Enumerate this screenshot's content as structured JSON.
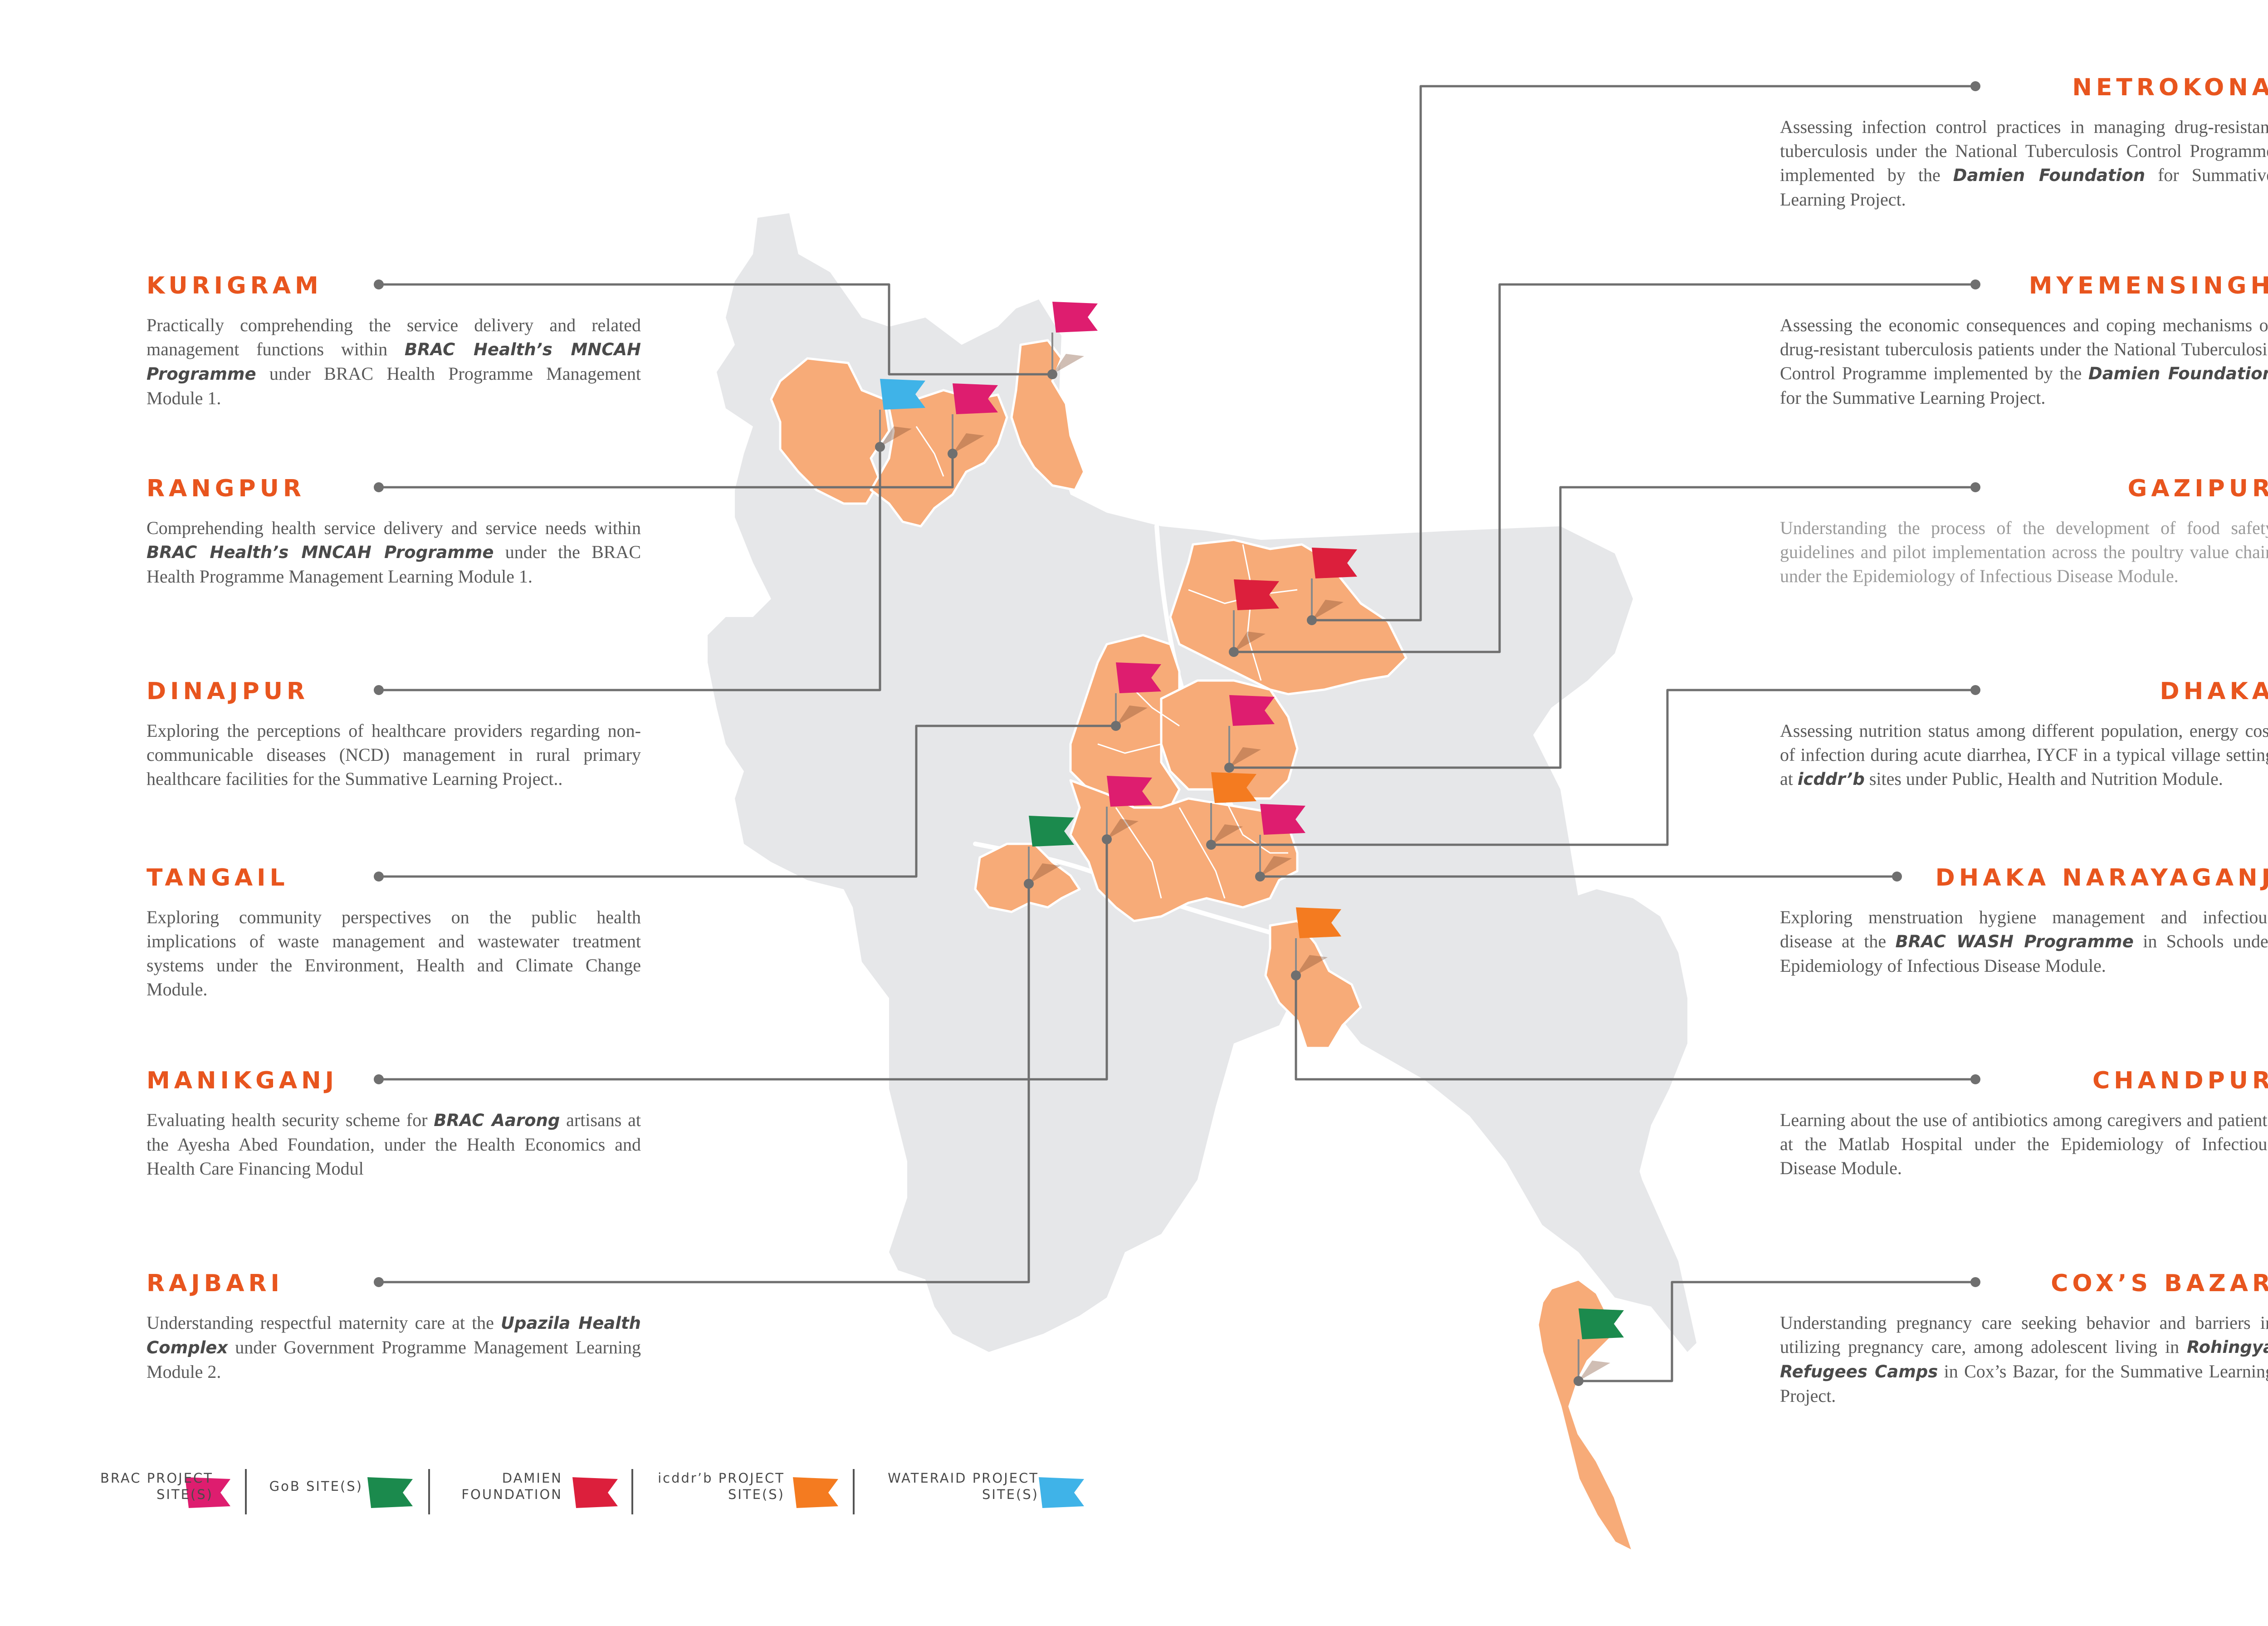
{
  "colors": {
    "accent": "#e8551e",
    "land": "#e6e7e9",
    "highlight": "#f7ab78",
    "brac": "#de1d6f",
    "gob": "#1b8a4d",
    "damien": "#dc1f3c",
    "icddrb": "#f47b20",
    "wateraid": "#3fb3e8"
  },
  "sites_left": [
    {
      "name": "KURIGRAM",
      "segments": [
        {
          "t": "Practically comprehending the service delivery and related management functions within "
        },
        {
          "t": "BRAC Health’s MNCAH Programme",
          "b": true
        },
        {
          "t": " under BRAC Health Programme Management Module 1."
        }
      ]
    },
    {
      "name": "RANGPUR",
      "segments": [
        {
          "t": "Comprehending health service delivery and service needs within "
        },
        {
          "t": "BRAC Health’s MNCAH Programme",
          "b": true
        },
        {
          "t": " under the BRAC Health Programme Management Learning Module 1."
        }
      ]
    },
    {
      "name": "DINAJPUR",
      "segments": [
        {
          "t": "Exploring the perceptions of healthcare providers regarding non-communicable diseases (NCD) management in rural primary healthcare facilities for the Summative Learning Project.."
        }
      ]
    },
    {
      "name": "TANGAIL",
      "segments": [
        {
          "t": "Exploring community perspectives on the public health implications of waste management and wastewater treatment systems under the Environment, Health and Climate Change Module."
        }
      ]
    },
    {
      "name": "MANIKGANJ",
      "segments": [
        {
          "t": "Evaluating health security scheme for "
        },
        {
          "t": "BRAC Aarong",
          "b": true
        },
        {
          "t": " artisans at the Ayesha Abed Foundation, under the Health Economics and Health Care Financing Modul"
        }
      ]
    },
    {
      "name": "RAJBARI",
      "segments": [
        {
          "t": "Understanding respectful maternity care at the "
        },
        {
          "t": "Upazila Health Complex",
          "b": true
        },
        {
          "t": " under Government Programme Management Learning Module 2."
        }
      ]
    }
  ],
  "sites_right": [
    {
      "name": "NETROKONA",
      "segments": [
        {
          "t": "Assessing infection control practices in managing drug-resistant tuberculosis under the National Tuberculosis Control Programme implemented by the "
        },
        {
          "t": "Damien Foundation",
          "b": true
        },
        {
          "t": " for Summative Learning Project."
        }
      ]
    },
    {
      "name": "MYEMENSINGH",
      "segments": [
        {
          "t": "Assessing the economic consequences and coping mechanisms of drug-resistant tuberculosis patients under the National Tuberculosis Control Programme implemented by the "
        },
        {
          "t": "Damien Foundation",
          "b": true
        },
        {
          "t": " for the Summative Learning Project."
        }
      ]
    },
    {
      "name": "GAZIPUR",
      "gray": true,
      "segments": [
        {
          "t": "Understanding the process of the development of food safety guidelines and pilot implementation across the poultry value chain under the Epidemiology of Infectious Disease Module."
        }
      ]
    },
    {
      "name": "DHAKA",
      "segments": [
        {
          "t": "Assessing nutrition status among different population, energy cost of infection during acute diarrhea, IYCF in a typical village setting at "
        },
        {
          "t": "icddr’b",
          "b": true
        },
        {
          "t": " sites under Public, Health and Nutrition Module."
        }
      ]
    },
    {
      "name": "DHAKA NARAYAGANJ",
      "segments": [
        {
          "t": "Exploring menstruation hygiene management and infectious disease at the "
        },
        {
          "t": "BRAC WASH Programme",
          "b": true
        },
        {
          "t": " in Schools under Epidemiology of Infectious Disease Module."
        }
      ]
    },
    {
      "name": "CHANDPUR",
      "segments": [
        {
          "t": "Learning about the use of antibiotics among caregivers and patients at the Matlab Hospital under the Epidemiology of Infectious Disease Module."
        }
      ]
    },
    {
      "name": "COX’S BAZAR",
      "segments": [
        {
          "t": "Understanding pregnancy care seeking behavior and barriers in utilizing pregnancy care, among adolescent living in "
        },
        {
          "t": "Rohingya Refugees Camps",
          "b": true
        },
        {
          "t": " in Cox’s Bazar, for the Summative Learning Project."
        }
      ]
    }
  ],
  "legend": [
    {
      "lines": [
        "BRAC PROJECT",
        "SITE(S)"
      ],
      "color_key": "brac"
    },
    {
      "lines": [
        "GoB SITE(S)"
      ],
      "color_key": "gob"
    },
    {
      "lines": [
        "DAMIEN",
        "FOUNDATION"
      ],
      "color_key": "damien"
    },
    {
      "lines": [
        "icddr’b PROJECT",
        "SITE(S)"
      ],
      "color_key": "icddrb"
    },
    {
      "lines": [
        "WATERAID PROJECT",
        "SITE(S)"
      ],
      "color_key": "wateraid"
    }
  ],
  "flags": [
    {
      "site": "KURIGRAM",
      "color_key": "brac"
    },
    {
      "site": "RANGPUR",
      "color_key": "brac"
    },
    {
      "site": "DINAJPUR",
      "color_key": "wateraid"
    },
    {
      "site": "TANGAIL",
      "color_key": "brac"
    },
    {
      "site": "MANIKGANJ",
      "color_key": "brac"
    },
    {
      "site": "RAJBARI",
      "color_key": "gob"
    },
    {
      "site": "NETROKONA",
      "color_key": "damien"
    },
    {
      "site": "MYEMENSINGH",
      "color_key": "damien"
    },
    {
      "site": "GAZIPUR",
      "color_key": "brac"
    },
    {
      "site": "DHAKA",
      "color_key": "icddrb"
    },
    {
      "site": "DHAKA NARAYAGANJ",
      "color_key": "brac"
    },
    {
      "site": "CHANDPUR",
      "color_key": "icddrb"
    },
    {
      "site": "COX’S BAZAR",
      "color_key": "gob"
    }
  ]
}
